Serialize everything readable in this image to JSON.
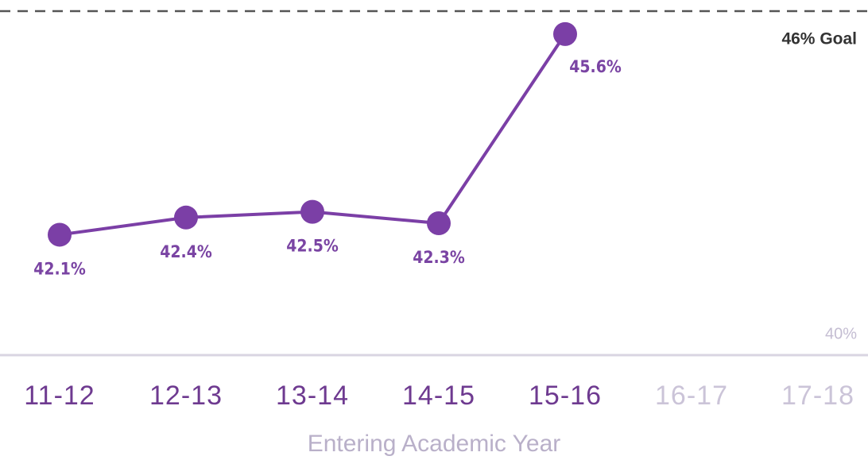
{
  "chart_data": {
    "type": "line",
    "x_label": "Entering Academic Year",
    "categories": [
      "11-12",
      "12-13",
      "13-14",
      "14-15",
      "15-16",
      "16-17",
      "17-18"
    ],
    "series": [
      {
        "color": "#7b3fa6",
        "values": [
          42.1,
          42.4,
          42.5,
          42.3,
          45.6,
          null,
          null
        ],
        "value_labels": [
          "42.1%",
          "42.4%",
          "42.5%",
          "42.3%",
          "45.6%",
          null,
          null
        ]
      }
    ],
    "goal": {
      "value": 46,
      "label": "46% Goal"
    },
    "ylim": [
      40,
      46
    ],
    "yticks": [
      {
        "value": 40,
        "label": "40%"
      }
    ]
  }
}
